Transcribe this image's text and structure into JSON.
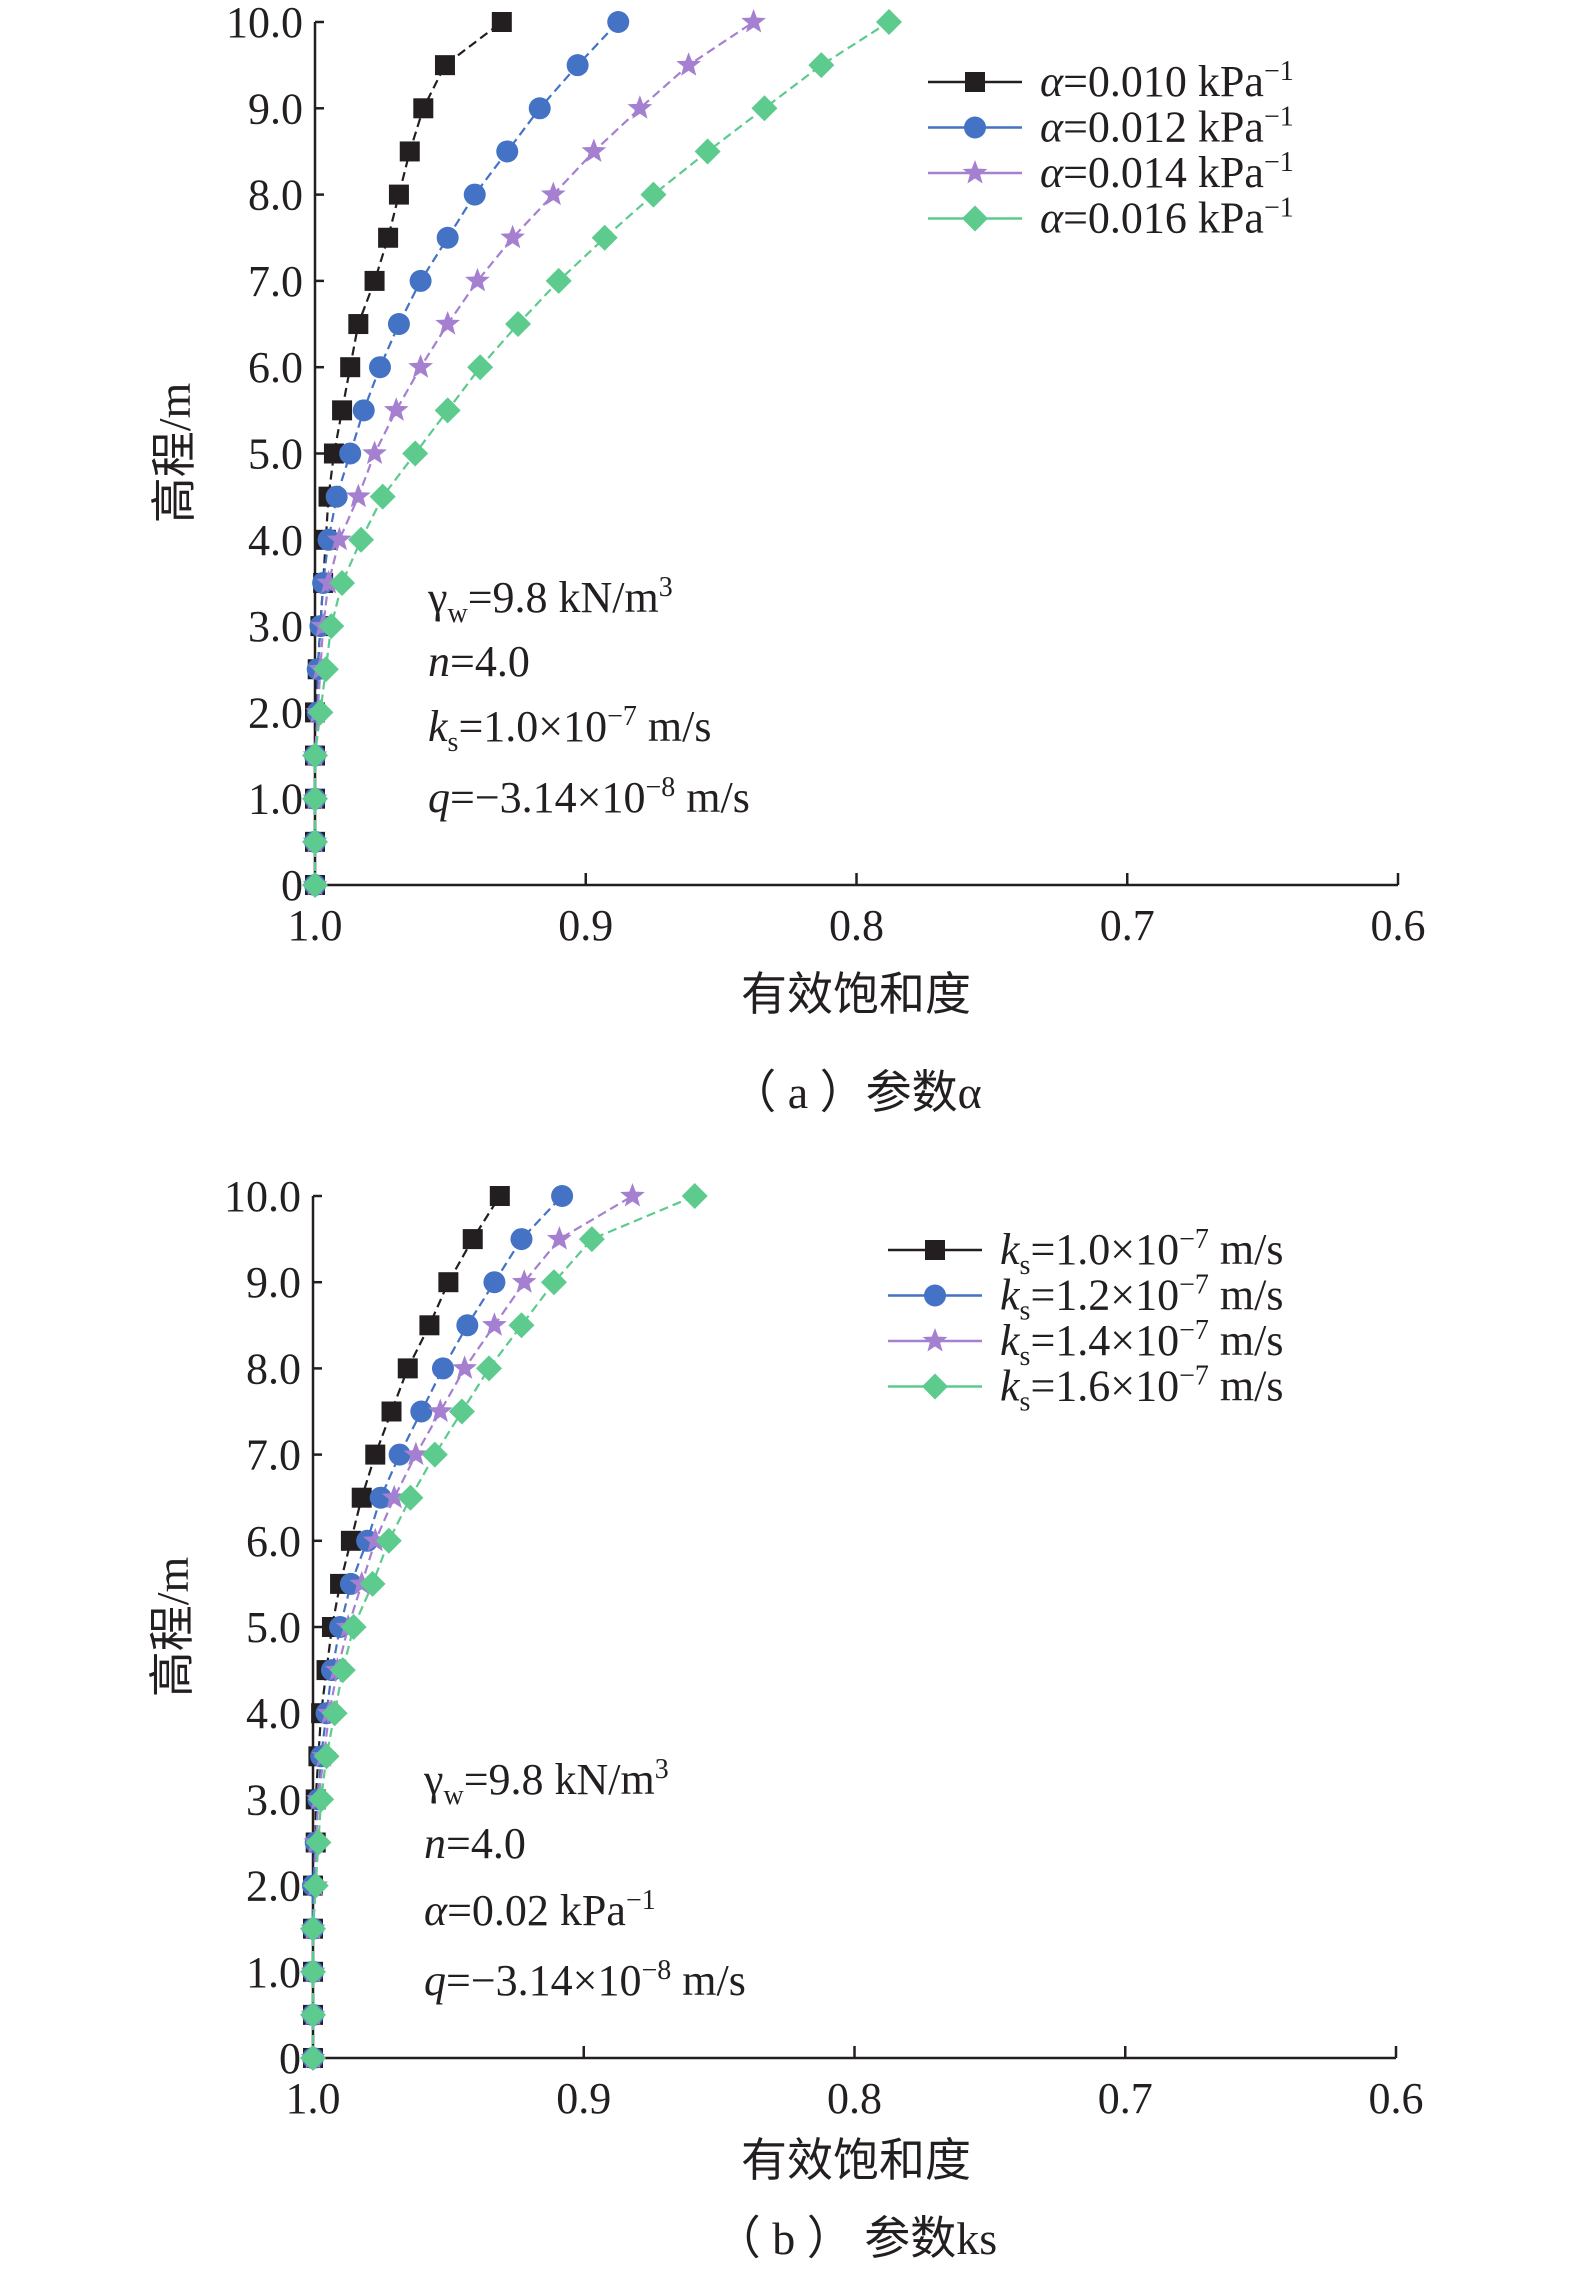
{
  "chart_data": [
    {
      "type": "line",
      "xlabel": "有效饱和度",
      "ylabel": "高程/m",
      "caption": "（ a ）参数α",
      "xlim": [
        1.0,
        0.6
      ],
      "ylim": [
        0,
        10
      ],
      "x_reversed": true,
      "xticks": [
        "1.0",
        "0.9",
        "0.8",
        "0.7",
        "0.6"
      ],
      "yticks": [
        "0",
        "1.0",
        "2.0",
        "3.0",
        "4.0",
        "5.0",
        "6.0",
        "7.0",
        "8.0",
        "9.0",
        "10.0"
      ],
      "grid": false,
      "legend_position": "top-right",
      "y": [
        0,
        0.5,
        1.0,
        1.5,
        2.0,
        2.5,
        3.0,
        3.5,
        4.0,
        4.5,
        5.0,
        5.5,
        6.0,
        6.5,
        7.0,
        7.5,
        8.0,
        8.5,
        9.0,
        9.5,
        10.0
      ],
      "series": [
        {
          "name": "α=0.010 kPa⁻¹",
          "marker": "square",
          "color": "#231f20",
          "values": [
            1.0,
            1.0,
            1.0,
            1.0,
            1.0,
            0.999,
            0.998,
            0.997,
            0.996,
            0.995,
            0.993,
            0.99,
            0.987,
            0.984,
            0.978,
            0.973,
            0.969,
            0.965,
            0.96,
            0.952,
            0.931
          ]
        },
        {
          "name": "α=0.012 kPa⁻¹",
          "marker": "circle",
          "color": "#4472c4",
          "values": [
            1.0,
            1.0,
            1.0,
            1.0,
            0.999,
            0.999,
            0.998,
            0.997,
            0.995,
            0.992,
            0.987,
            0.982,
            0.976,
            0.969,
            0.961,
            0.951,
            0.941,
            0.929,
            0.917,
            0.903,
            0.888
          ]
        },
        {
          "name": "α=0.014 kPa⁻¹",
          "marker": "star",
          "color": "#a680d0",
          "values": [
            1.0,
            1.0,
            1.0,
            1.0,
            0.999,
            0.998,
            0.997,
            0.995,
            0.991,
            0.984,
            0.978,
            0.97,
            0.961,
            0.951,
            0.94,
            0.927,
            0.912,
            0.897,
            0.88,
            0.862,
            0.838
          ]
        },
        {
          "name": "α=0.016 kPa⁻¹",
          "marker": "diamond",
          "color": "#5ccb8d",
          "values": [
            1.0,
            1.0,
            1.0,
            1.0,
            0.998,
            0.996,
            0.994,
            0.99,
            0.983,
            0.975,
            0.963,
            0.951,
            0.939,
            0.925,
            0.91,
            0.893,
            0.875,
            0.855,
            0.834,
            0.813,
            0.788
          ]
        }
      ],
      "annotations": [
        "γw=9.8 kN/m3",
        "n=4.0",
        "ks=1.0×10−7 m/s",
        "q=−3.14×10−8 m/s"
      ]
    },
    {
      "type": "line",
      "xlabel": "有效饱和度",
      "ylabel": "高程/m",
      "caption": "（ b ） 参数ks",
      "xlim": [
        1.0,
        0.6
      ],
      "ylim": [
        0,
        10
      ],
      "x_reversed": true,
      "xticks": [
        "1.0",
        "0.9",
        "0.8",
        "0.7",
        "0.6"
      ],
      "yticks": [
        "0",
        "1.0",
        "2.0",
        "3.0",
        "4.0",
        "5.0",
        "6.0",
        "7.0",
        "8.0",
        "9.0",
        "10.0"
      ],
      "grid": false,
      "legend_position": "top-right",
      "y": [
        0,
        0.5,
        1.0,
        1.5,
        2.0,
        2.5,
        3.0,
        3.5,
        4.0,
        4.5,
        5.0,
        5.5,
        6.0,
        6.5,
        7.0,
        7.5,
        8.0,
        8.5,
        9.0,
        9.5,
        10.0
      ],
      "series": [
        {
          "name": "ks=1.0×10−7 m/s",
          "marker": "square",
          "color": "#231f20",
          "values": [
            1.0,
            1.0,
            1.0,
            1.0,
            1.0,
            0.999,
            0.999,
            0.998,
            0.997,
            0.995,
            0.993,
            0.99,
            0.986,
            0.982,
            0.977,
            0.971,
            0.965,
            0.957,
            0.95,
            0.941,
            0.931
          ]
        },
        {
          "name": "ks=1.2×10−7 m/s",
          "marker": "circle",
          "color": "#4472c4",
          "values": [
            1.0,
            1.0,
            1.0,
            1.0,
            1.0,
            0.999,
            0.998,
            0.997,
            0.995,
            0.993,
            0.99,
            0.986,
            0.98,
            0.975,
            0.968,
            0.96,
            0.952,
            0.943,
            0.933,
            0.923,
            0.908
          ]
        },
        {
          "name": "ks=1.4×10−7 m/s",
          "marker": "star",
          "color": "#a680d0",
          "values": [
            1.0,
            1.0,
            1.0,
            1.0,
            0.999,
            0.999,
            0.998,
            0.996,
            0.994,
            0.991,
            0.987,
            0.982,
            0.977,
            0.97,
            0.962,
            0.953,
            0.944,
            0.933,
            0.922,
            0.909,
            0.882
          ]
        },
        {
          "name": "ks=1.6×10−7 m/s",
          "marker": "diamond",
          "color": "#5ccb8d",
          "values": [
            1.0,
            1.0,
            1.0,
            1.0,
            0.999,
            0.998,
            0.997,
            0.995,
            0.992,
            0.989,
            0.985,
            0.978,
            0.972,
            0.964,
            0.955,
            0.945,
            0.935,
            0.923,
            0.911,
            0.897,
            0.859
          ]
        }
      ],
      "annotations": [
        "γw=9.8 kN/m3",
        "n=4.0",
        "α=0.02 kPa−1",
        "q=−3.14×10−8 m/s"
      ]
    }
  ]
}
